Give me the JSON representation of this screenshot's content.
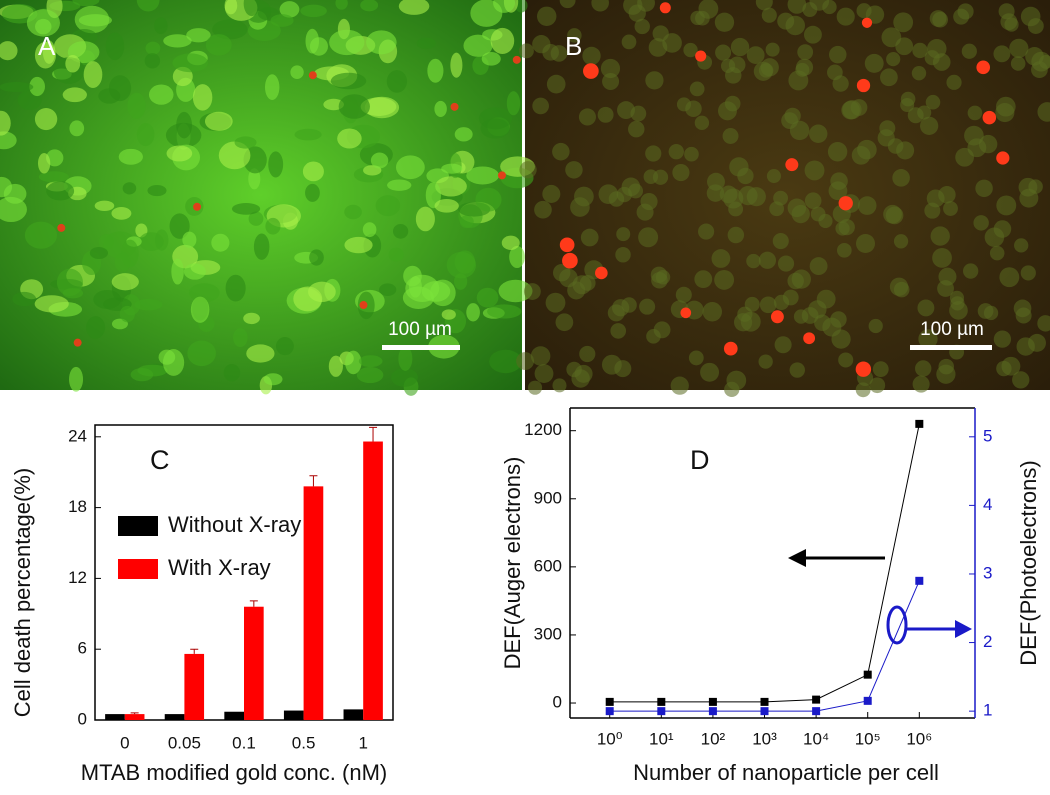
{
  "panels": [
    {
      "label": "A",
      "scale_bar": "100 µm"
    },
    {
      "label": "B",
      "scale_bar": "100 µm"
    }
  ],
  "chart_data": [
    {
      "type": "bar",
      "panel_label": "C",
      "categories": [
        "0",
        "0.05",
        "0.1",
        "0.5",
        "1"
      ],
      "series": [
        {
          "name": "Without X-ray",
          "color": "#000000",
          "values": [
            0.5,
            0.5,
            0.7,
            0.8,
            0.9
          ]
        },
        {
          "name": "With X-ray",
          "color": "#ff0000",
          "values": [
            0.5,
            5.6,
            9.6,
            19.8,
            23.6
          ],
          "errors": [
            0.1,
            0.4,
            0.5,
            0.9,
            1.2
          ]
        }
      ],
      "ylim": [
        0,
        25
      ],
      "yticks": [
        0,
        6,
        12,
        18,
        24
      ],
      "y_label": "Cell death percentage(%)",
      "x_label": "MTAB modified gold conc. (nM)",
      "legend": "upper-left"
    },
    {
      "type": "line",
      "panel_label": "D",
      "x": [
        1,
        10,
        100,
        1000,
        10000,
        100000,
        1000000
      ],
      "series": [
        {
          "name": "DEF(Auger electrons)",
          "color": "#000000",
          "values": [
            5,
            5,
            5,
            5,
            15,
            125,
            1230
          ]
        },
        {
          "name": "DEF(Photoelectrons)",
          "color": "#1a1ac8",
          "axis": "y2",
          "values": [
            1,
            1,
            1,
            1,
            1,
            1.15,
            2.9
          ]
        }
      ],
      "xscale": "log",
      "xlim": [
        0.17,
        12000000
      ],
      "xticks": [
        {
          "value": 1,
          "label": "10⁰"
        },
        {
          "value": 10,
          "label": "10¹"
        },
        {
          "value": 100,
          "label": "10²"
        },
        {
          "value": 1000,
          "label": "10³"
        },
        {
          "value": 10000,
          "label": "10⁴"
        },
        {
          "value": 100000,
          "label": "10⁵"
        },
        {
          "value": 1000000,
          "label": "10⁶"
        }
      ],
      "ylim": [
        -66,
        1300
      ],
      "yticks": [
        0,
        300,
        600,
        900,
        1200
      ],
      "y2lim": [
        0.9,
        5.42
      ],
      "y2ticks": [
        1,
        2,
        3,
        4,
        5
      ],
      "x_label": "Number of nanoparticle per cell",
      "y_label": "DEF(Auger electrons)",
      "y2_label": "DEF(Photoelectrons)"
    }
  ]
}
